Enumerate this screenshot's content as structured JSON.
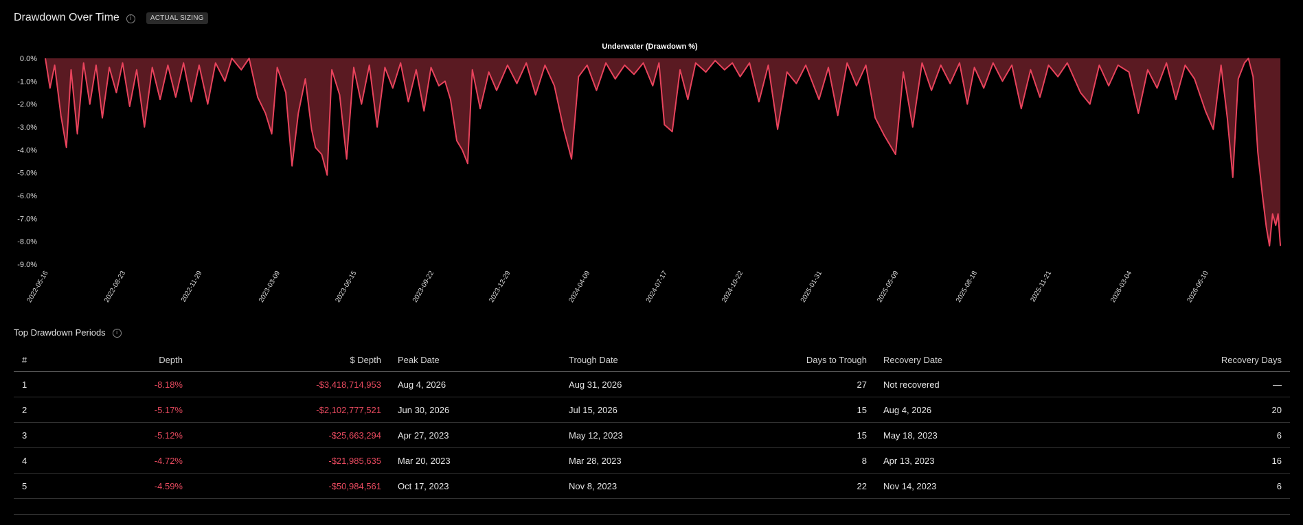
{
  "header": {
    "title": "Drawdown Over Time",
    "info_icon": "info-icon",
    "badge": "ACTUAL SIZING"
  },
  "colors": {
    "line": "#e8435c",
    "fill": "#5a1a22",
    "background": "#000000",
    "negative_text": "#e84a5f"
  },
  "chart_data": {
    "type": "area",
    "title": "Underwater (Drawdown %)",
    "xlabel": "",
    "ylabel": "",
    "ylim": [
      -9.0,
      0.0
    ],
    "yticks": [
      "0.0%",
      "-1.0%",
      "-2.0%",
      "-3.0%",
      "-4.0%",
      "-5.0%",
      "-6.0%",
      "-7.0%",
      "-8.0%",
      "-9.0%"
    ],
    "xticks": [
      "2022-05-16",
      "2022-08-23",
      "2022-11-29",
      "2023-03-09",
      "2023-06-15",
      "2023-09-22",
      "2023-12-29",
      "2024-04-09",
      "2024-07-17",
      "2024-10-22",
      "2025-01-31",
      "2025-05-09",
      "2025-08-18",
      "2025-11-21",
      "2026-03-04",
      "2026-06-10"
    ],
    "grid": false,
    "series": [
      {
        "points": [
          [
            "2022-05-16",
            0
          ],
          [
            "2022-05-22",
            -1.3
          ],
          [
            "2022-05-28",
            -0.3
          ],
          [
            "2022-06-05",
            -2.5
          ],
          [
            "2022-06-12",
            -3.9
          ],
          [
            "2022-06-18",
            -0.5
          ],
          [
            "2022-06-26",
            -3.3
          ],
          [
            "2022-07-04",
            -0.2
          ],
          [
            "2022-07-12",
            -2.0
          ],
          [
            "2022-07-20",
            -0.3
          ],
          [
            "2022-07-28",
            -2.6
          ],
          [
            "2022-08-06",
            -0.4
          ],
          [
            "2022-08-15",
            -1.5
          ],
          [
            "2022-08-23",
            -0.2
          ],
          [
            "2022-09-01",
            -2.1
          ],
          [
            "2022-09-10",
            -0.5
          ],
          [
            "2022-09-20",
            -3.0
          ],
          [
            "2022-09-30",
            -0.4
          ],
          [
            "2022-10-10",
            -1.8
          ],
          [
            "2022-10-20",
            -0.3
          ],
          [
            "2022-10-30",
            -1.7
          ],
          [
            "2022-11-09",
            -0.2
          ],
          [
            "2022-11-19",
            -1.9
          ],
          [
            "2022-11-29",
            -0.3
          ],
          [
            "2022-12-10",
            -2.0
          ],
          [
            "2022-12-20",
            -0.2
          ],
          [
            "2023-01-01",
            -1.0
          ],
          [
            "2023-01-10",
            0
          ],
          [
            "2023-01-22",
            -0.5
          ],
          [
            "2023-02-01",
            0
          ],
          [
            "2023-02-12",
            -1.7
          ],
          [
            "2023-02-22",
            -2.4
          ],
          [
            "2023-03-02",
            -3.3
          ],
          [
            "2023-03-09",
            -0.4
          ],
          [
            "2023-03-20",
            -1.5
          ],
          [
            "2023-03-28",
            -4.7
          ],
          [
            "2023-04-05",
            -2.4
          ],
          [
            "2023-04-14",
            -0.9
          ],
          [
            "2023-04-22",
            -3.1
          ],
          [
            "2023-04-27",
            -3.9
          ],
          [
            "2023-05-05",
            -4.2
          ],
          [
            "2023-05-12",
            -5.1
          ],
          [
            "2023-05-18",
            -0.5
          ],
          [
            "2023-05-28",
            -1.6
          ],
          [
            "2023-06-06",
            -4.4
          ],
          [
            "2023-06-15",
            -0.4
          ],
          [
            "2023-06-25",
            -2.0
          ],
          [
            "2023-07-05",
            -0.3
          ],
          [
            "2023-07-15",
            -3.0
          ],
          [
            "2023-07-25",
            -0.4
          ],
          [
            "2023-08-04",
            -1.3
          ],
          [
            "2023-08-14",
            -0.2
          ],
          [
            "2023-08-24",
            -1.9
          ],
          [
            "2023-09-03",
            -0.5
          ],
          [
            "2023-09-13",
            -2.3
          ],
          [
            "2023-09-22",
            -0.4
          ],
          [
            "2023-10-02",
            -1.2
          ],
          [
            "2023-10-10",
            -1.0
          ],
          [
            "2023-10-17",
            -1.8
          ],
          [
            "2023-10-25",
            -3.6
          ],
          [
            "2023-11-01",
            -4.0
          ],
          [
            "2023-11-08",
            -4.6
          ],
          [
            "2023-11-14",
            -0.5
          ],
          [
            "2023-11-24",
            -2.2
          ],
          [
            "2023-12-05",
            -0.6
          ],
          [
            "2023-12-15",
            -1.4
          ],
          [
            "2023-12-29",
            -0.3
          ],
          [
            "2024-01-10",
            -1.1
          ],
          [
            "2024-01-22",
            -0.2
          ],
          [
            "2024-02-03",
            -1.6
          ],
          [
            "2024-02-15",
            -0.3
          ],
          [
            "2024-02-27",
            -1.2
          ],
          [
            "2024-03-10",
            -3.1
          ],
          [
            "2024-03-20",
            -4.4
          ],
          [
            "2024-03-29",
            -0.8
          ],
          [
            "2024-04-09",
            -0.3
          ],
          [
            "2024-04-21",
            -1.4
          ],
          [
            "2024-05-03",
            -0.2
          ],
          [
            "2024-05-15",
            -0.9
          ],
          [
            "2024-05-27",
            -0.3
          ],
          [
            "2024-06-08",
            -0.7
          ],
          [
            "2024-06-20",
            -0.2
          ],
          [
            "2024-07-02",
            -1.2
          ],
          [
            "2024-07-10",
            -0.2
          ],
          [
            "2024-07-17",
            -2.9
          ],
          [
            "2024-07-27",
            -3.2
          ],
          [
            "2024-08-06",
            -0.5
          ],
          [
            "2024-08-16",
            -1.8
          ],
          [
            "2024-08-26",
            -0.2
          ],
          [
            "2024-09-08",
            -0.6
          ],
          [
            "2024-09-20",
            -0.1
          ],
          [
            "2024-10-02",
            -0.5
          ],
          [
            "2024-10-12",
            -0.2
          ],
          [
            "2024-10-22",
            -0.8
          ],
          [
            "2024-11-03",
            -0.2
          ],
          [
            "2024-11-15",
            -1.9
          ],
          [
            "2024-11-27",
            -0.3
          ],
          [
            "2024-12-09",
            -3.1
          ],
          [
            "2024-12-21",
            -0.6
          ],
          [
            "2025-01-02",
            -1.1
          ],
          [
            "2025-01-14",
            -0.3
          ],
          [
            "2025-01-31",
            -1.8
          ],
          [
            "2025-02-12",
            -0.4
          ],
          [
            "2025-02-24",
            -2.5
          ],
          [
            "2025-03-08",
            -0.2
          ],
          [
            "2025-03-20",
            -1.2
          ],
          [
            "2025-04-01",
            -0.3
          ],
          [
            "2025-04-13",
            -2.6
          ],
          [
            "2025-04-25",
            -3.4
          ],
          [
            "2025-05-09",
            -4.2
          ],
          [
            "2025-05-19",
            -0.6
          ],
          [
            "2025-05-31",
            -3.0
          ],
          [
            "2025-06-12",
            -0.2
          ],
          [
            "2025-06-24",
            -1.4
          ],
          [
            "2025-07-06",
            -0.3
          ],
          [
            "2025-07-18",
            -1.1
          ],
          [
            "2025-07-30",
            -0.2
          ],
          [
            "2025-08-09",
            -2.0
          ],
          [
            "2025-08-18",
            -0.4
          ],
          [
            "2025-08-30",
            -1.3
          ],
          [
            "2025-09-11",
            -0.2
          ],
          [
            "2025-09-23",
            -1.0
          ],
          [
            "2025-10-05",
            -0.3
          ],
          [
            "2025-10-17",
            -2.2
          ],
          [
            "2025-10-29",
            -0.5
          ],
          [
            "2025-11-10",
            -1.7
          ],
          [
            "2025-11-21",
            -0.3
          ],
          [
            "2025-12-03",
            -0.8
          ],
          [
            "2025-12-15",
            -0.2
          ],
          [
            "2026-01-01",
            -1.5
          ],
          [
            "2026-01-13",
            -2.0
          ],
          [
            "2026-01-25",
            -0.3
          ],
          [
            "2026-02-06",
            -1.2
          ],
          [
            "2026-02-18",
            -0.3
          ],
          [
            "2026-03-04",
            -0.6
          ],
          [
            "2026-03-16",
            -2.4
          ],
          [
            "2026-03-28",
            -0.5
          ],
          [
            "2026-04-09",
            -1.3
          ],
          [
            "2026-04-21",
            -0.2
          ],
          [
            "2026-05-03",
            -1.8
          ],
          [
            "2026-05-15",
            -0.3
          ],
          [
            "2026-05-27",
            -0.9
          ],
          [
            "2026-06-10",
            -2.3
          ],
          [
            "2026-06-20",
            -3.1
          ],
          [
            "2026-06-30",
            -0.3
          ],
          [
            "2026-07-08",
            -2.6
          ],
          [
            "2026-07-15",
            -5.2
          ],
          [
            "2026-07-22",
            -0.9
          ],
          [
            "2026-07-30",
            -0.2
          ],
          [
            "2026-08-04",
            0
          ],
          [
            "2026-08-10",
            -0.8
          ],
          [
            "2026-08-16",
            -4.1
          ],
          [
            "2026-08-22",
            -6.0
          ],
          [
            "2026-08-27",
            -7.4
          ],
          [
            "2026-08-31",
            -8.2
          ],
          [
            "2026-09-04",
            -6.8
          ],
          [
            "2026-09-08",
            -7.3
          ],
          [
            "2026-09-11",
            -6.8
          ],
          [
            "2026-09-14",
            -8.2
          ]
        ]
      }
    ]
  },
  "table_section": {
    "title": "Top Drawdown Periods",
    "info_icon": "info-icon"
  },
  "table": {
    "headers": [
      "#",
      "Depth",
      "$ Depth",
      "Peak Date",
      "Trough Date",
      "Days to Trough",
      "Recovery Date",
      "Recovery Days"
    ],
    "rows": [
      [
        "1",
        "-8.18%",
        "-$3,418,714,953",
        "Aug 4, 2026",
        "Aug 31, 2026",
        "27",
        "Not recovered",
        "—"
      ],
      [
        "2",
        "-5.17%",
        "-$2,102,777,521",
        "Jun 30, 2026",
        "Jul 15, 2026",
        "15",
        "Aug 4, 2026",
        "20"
      ],
      [
        "3",
        "-5.12%",
        "-$25,663,294",
        "Apr 27, 2023",
        "May 12, 2023",
        "15",
        "May 18, 2023",
        "6"
      ],
      [
        "4",
        "-4.72%",
        "-$21,985,635",
        "Mar 20, 2023",
        "Mar 28, 2023",
        "8",
        "Apr 13, 2023",
        "16"
      ],
      [
        "5",
        "-4.59%",
        "-$50,984,561",
        "Oct 17, 2023",
        "Nov 8, 2023",
        "22",
        "Nov 14, 2023",
        "6"
      ]
    ]
  }
}
